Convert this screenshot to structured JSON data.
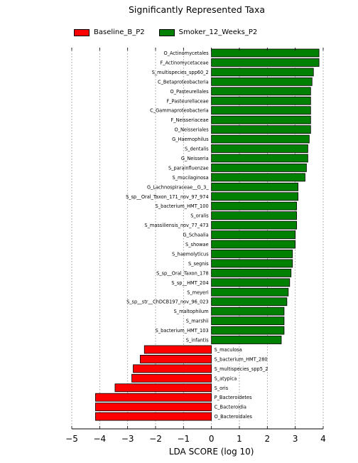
{
  "chart_data": {
    "type": "bar",
    "orientation": "horizontal",
    "title": "Significantly Represented Taxa",
    "xlabel": "LDA SCORE (log 10)",
    "xlim": [
      -5,
      4
    ],
    "xticks": [
      "−5",
      "−4",
      "−3",
      "−2",
      "−1",
      "0",
      "1",
      "2",
      "3",
      "4"
    ],
    "grid": "vertical dotted",
    "legend_position": "top",
    "series": [
      {
        "name": "Baseline_B_P2",
        "color": "#ff0000"
      },
      {
        "name": "Smoker_12_Weeks_P2",
        "color": "#008000"
      }
    ],
    "bars": [
      {
        "label": "O_Actinomycetales",
        "value": 3.85,
        "group": "Smoker_12_Weeks_P2"
      },
      {
        "label": "F_Actinomycetaceae",
        "value": 3.85,
        "group": "Smoker_12_Weeks_P2"
      },
      {
        "label": "S_multispecies_spp60_2",
        "value": 3.65,
        "group": "Smoker_12_Weeks_P2"
      },
      {
        "label": "C_Betaproteobacteria",
        "value": 3.6,
        "group": "Smoker_12_Weeks_P2"
      },
      {
        "label": "O_Pasteurellales",
        "value": 3.55,
        "group": "Smoker_12_Weeks_P2"
      },
      {
        "label": "F_Pasteurellaceae",
        "value": 3.55,
        "group": "Smoker_12_Weeks_P2"
      },
      {
        "label": "C_Gammaproteobacteria",
        "value": 3.55,
        "group": "Smoker_12_Weeks_P2"
      },
      {
        "label": "F_Neisseriaceae",
        "value": 3.55,
        "group": "Smoker_12_Weeks_P2"
      },
      {
        "label": "O_Neisseriales",
        "value": 3.55,
        "group": "Smoker_12_Weeks_P2"
      },
      {
        "label": "G_Haemophilus",
        "value": 3.5,
        "group": "Smoker_12_Weeks_P2"
      },
      {
        "label": "S_dentalis",
        "value": 3.45,
        "group": "Smoker_12_Weeks_P2"
      },
      {
        "label": "G_Neisseria",
        "value": 3.45,
        "group": "Smoker_12_Weeks_P2"
      },
      {
        "label": "S_parainfluenzae",
        "value": 3.4,
        "group": "Smoker_12_Weeks_P2"
      },
      {
        "label": "S_mucilaginosa",
        "value": 3.35,
        "group": "Smoker_12_Weeks_P2"
      },
      {
        "label": "G_Lachnospiraceae__G_3_",
        "value": 3.1,
        "group": "Smoker_12_Weeks_P2"
      },
      {
        "label": "S_sp__Oral_Taxon_171_nov_97_974",
        "value": 3.1,
        "group": "Smoker_12_Weeks_P2"
      },
      {
        "label": "S_bacterium_HMT_100",
        "value": 3.05,
        "group": "Smoker_12_Weeks_P2"
      },
      {
        "label": "S_oralis",
        "value": 3.05,
        "group": "Smoker_12_Weeks_P2"
      },
      {
        "label": "S_massiliensis_nov_77_473",
        "value": 3.05,
        "group": "Smoker_12_Weeks_P2"
      },
      {
        "label": "G_Schaalia",
        "value": 3.0,
        "group": "Smoker_12_Weeks_P2"
      },
      {
        "label": "S_showae",
        "value": 3.0,
        "group": "Smoker_12_Weeks_P2"
      },
      {
        "label": "S_haemolyticus",
        "value": 2.9,
        "group": "Smoker_12_Weeks_P2"
      },
      {
        "label": "S_segnis",
        "value": 2.9,
        "group": "Smoker_12_Weeks_P2"
      },
      {
        "label": "S_sp__Oral_Taxon_178",
        "value": 2.85,
        "group": "Smoker_12_Weeks_P2"
      },
      {
        "label": "S_sp__HMT_204",
        "value": 2.8,
        "group": "Smoker_12_Weeks_P2"
      },
      {
        "label": "S_meyeri",
        "value": 2.75,
        "group": "Smoker_12_Weeks_P2"
      },
      {
        "label": "S_sp__str__ChDCB197_nov_96_023",
        "value": 2.7,
        "group": "Smoker_12_Weeks_P2"
      },
      {
        "label": "S_maltophilum",
        "value": 2.6,
        "group": "Smoker_12_Weeks_P2"
      },
      {
        "label": "S_marshii",
        "value": 2.6,
        "group": "Smoker_12_Weeks_P2"
      },
      {
        "label": "S_bacterium_HMT_103",
        "value": 2.6,
        "group": "Smoker_12_Weeks_P2"
      },
      {
        "label": "S_infantis",
        "value": 2.5,
        "group": "Smoker_12_Weeks_P2"
      },
      {
        "label": "S_maculosa",
        "value": -2.4,
        "group": "Baseline_B_P2"
      },
      {
        "label": "S_bacterium_HMT_280",
        "value": -2.55,
        "group": "Baseline_B_P2"
      },
      {
        "label": "S_multispecies_spp5_2",
        "value": -2.8,
        "group": "Baseline_B_P2"
      },
      {
        "label": "S_atypica",
        "value": -2.85,
        "group": "Baseline_B_P2"
      },
      {
        "label": "S_oris",
        "value": -3.45,
        "group": "Baseline_B_P2"
      },
      {
        "label": "P_Bacteroidetes",
        "value": -4.15,
        "group": "Baseline_B_P2"
      },
      {
        "label": "C_Bacteroidia",
        "value": -4.15,
        "group": "Baseline_B_P2"
      },
      {
        "label": "O_Bacteroidales",
        "value": -4.15,
        "group": "Baseline_B_P2"
      }
    ]
  }
}
